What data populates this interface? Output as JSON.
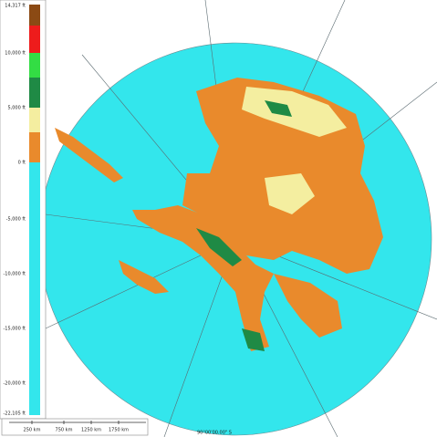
{
  "legend": {
    "labels": [
      "14,317 ft",
      "10,000 ft",
      "5,000 ft",
      "0 ft",
      "-5,000 ft",
      "-10,000 ft",
      "-15,000 ft",
      "-20,000 ft",
      "-22,105 ft"
    ]
  },
  "scale_bar": {
    "labels": [
      "250 km",
      "750 km",
      "1250 km",
      "1750 km"
    ]
  },
  "coordinate": "90°00'00.00\" S"
}
